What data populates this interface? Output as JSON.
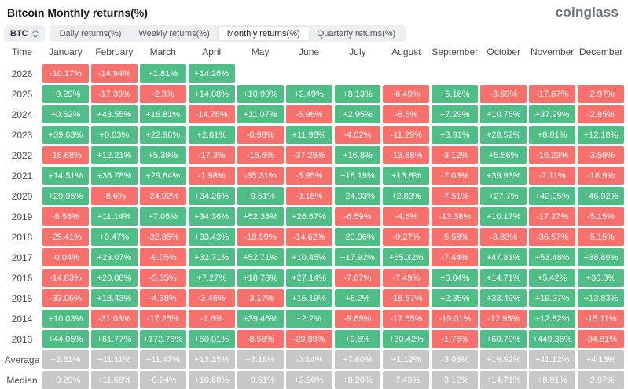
{
  "header": {
    "title": "Bitcoin Monthly returns(%)",
    "brand": "coinglass"
  },
  "controls": {
    "symbol": "BTC",
    "tabs": [
      {
        "label": "Daily returns(%)",
        "active": false
      },
      {
        "label": "Weekly returns(%)",
        "active": false
      },
      {
        "label": "Monthly returns(%)",
        "active": true
      },
      {
        "label": "Quarterly returns(%)",
        "active": false
      }
    ]
  },
  "colors": {
    "positive": "#4ebe86",
    "negative": "#f7706c",
    "neutral": "#c7c7c7"
  },
  "table": {
    "columns": [
      "Time",
      "January",
      "February",
      "March",
      "April",
      "May",
      "June",
      "July",
      "August",
      "September",
      "October",
      "November",
      "December"
    ],
    "rows": [
      {
        "label": "2026",
        "values": [
          "-10.17%",
          "-14.94%",
          "+1.81%",
          "+14.26%",
          "",
          "",
          "",
          "",
          "",
          "",
          "",
          ""
        ],
        "colors": [
          "r",
          "r",
          "g",
          "g",
          "e",
          "e",
          "e",
          "e",
          "e",
          "e",
          "e",
          "e"
        ]
      },
      {
        "label": "2025",
        "values": [
          "+9.29%",
          "-17.39%",
          "-2.3%",
          "+14.08%",
          "+10.99%",
          "+2.49%",
          "+8.13%",
          "-6.49%",
          "+5.16%",
          "-3.69%",
          "-17.67%",
          "-2.97%"
        ],
        "colors": [
          "g",
          "r",
          "r",
          "g",
          "g",
          "g",
          "g",
          "r",
          "g",
          "r",
          "r",
          "r"
        ]
      },
      {
        "label": "2024",
        "values": [
          "+0.62%",
          "+43.55%",
          "+16.81%",
          "-14.76%",
          "+11.07%",
          "-6.96%",
          "+2.95%",
          "-8.6%",
          "+7.29%",
          "+10.76%",
          "+37.29%",
          "-2.85%"
        ],
        "colors": [
          "g",
          "g",
          "g",
          "r",
          "g",
          "r",
          "g",
          "r",
          "g",
          "g",
          "g",
          "r"
        ]
      },
      {
        "label": "2023",
        "values": [
          "+39.63%",
          "+0.03%",
          "+22.96%",
          "+2.81%",
          "-6.98%",
          "+11.98%",
          "-4.02%",
          "-11.29%",
          "+3.91%",
          "+28.52%",
          "+8.81%",
          "+12.18%"
        ],
        "colors": [
          "g",
          "g",
          "g",
          "g",
          "r",
          "g",
          "r",
          "r",
          "g",
          "g",
          "g",
          "g"
        ]
      },
      {
        "label": "2022",
        "values": [
          "-16.68%",
          "+12.21%",
          "+5.39%",
          "-17.3%",
          "-15.6%",
          "-37.28%",
          "+16.8%",
          "-13.88%",
          "-3.12%",
          "+5.56%",
          "-16.23%",
          "-3.59%"
        ],
        "colors": [
          "r",
          "g",
          "g",
          "r",
          "r",
          "r",
          "g",
          "r",
          "r",
          "g",
          "r",
          "r"
        ]
      },
      {
        "label": "2021",
        "values": [
          "+14.51%",
          "+36.78%",
          "+29.84%",
          "-1.98%",
          "-35.31%",
          "-5.95%",
          "+18.19%",
          "+13.8%",
          "-7.03%",
          "+39.93%",
          "-7.11%",
          "-18.9%"
        ],
        "colors": [
          "g",
          "g",
          "g",
          "r",
          "r",
          "r",
          "g",
          "g",
          "r",
          "g",
          "r",
          "r"
        ]
      },
      {
        "label": "2020",
        "values": [
          "+29.95%",
          "-8.6%",
          "-24.92%",
          "+34.26%",
          "+9.51%",
          "-3.18%",
          "+24.03%",
          "+2.83%",
          "-7.51%",
          "+27.7%",
          "+42.95%",
          "+46.92%"
        ],
        "colors": [
          "g",
          "r",
          "r",
          "g",
          "g",
          "r",
          "g",
          "g",
          "r",
          "g",
          "g",
          "g"
        ]
      },
      {
        "label": "2019",
        "values": [
          "-8.58%",
          "+11.14%",
          "+7.05%",
          "+34.36%",
          "+52.38%",
          "+26.67%",
          "-6.59%",
          "-4.6%",
          "-13.38%",
          "+10.17%",
          "-17.27%",
          "-5.15%"
        ],
        "colors": [
          "r",
          "g",
          "g",
          "g",
          "g",
          "g",
          "r",
          "r",
          "r",
          "g",
          "r",
          "r"
        ]
      },
      {
        "label": "2018",
        "values": [
          "-25.41%",
          "+0.47%",
          "-32.85%",
          "+33.43%",
          "-18.99%",
          "-14.62%",
          "+20.96%",
          "-9.27%",
          "-5.58%",
          "-3.83%",
          "-36.57%",
          "-5.15%"
        ],
        "colors": [
          "r",
          "g",
          "r",
          "g",
          "r",
          "r",
          "g",
          "r",
          "r",
          "r",
          "r",
          "r"
        ]
      },
      {
        "label": "2017",
        "values": [
          "-0.04%",
          "+23.07%",
          "-9.05%",
          "+32.71%",
          "+52.71%",
          "+10.45%",
          "+17.92%",
          "+65.32%",
          "-7.44%",
          "+47.81%",
          "+53.48%",
          "+38.89%"
        ],
        "colors": [
          "r",
          "g",
          "r",
          "g",
          "g",
          "g",
          "g",
          "g",
          "r",
          "g",
          "g",
          "g"
        ]
      },
      {
        "label": "2016",
        "values": [
          "-14.83%",
          "+20.08%",
          "-5.35%",
          "+7.27%",
          "+18.78%",
          "+27.14%",
          "-7.67%",
          "-7.49%",
          "+6.04%",
          "+14.71%",
          "+5.42%",
          "+30.8%"
        ],
        "colors": [
          "r",
          "g",
          "r",
          "g",
          "g",
          "g",
          "r",
          "r",
          "g",
          "g",
          "g",
          "g"
        ]
      },
      {
        "label": "2015",
        "values": [
          "-33.05%",
          "+18.43%",
          "-4.38%",
          "-3.46%",
          "-3.17%",
          "+15.19%",
          "+8.2%",
          "-18.67%",
          "+2.35%",
          "+33.49%",
          "+19.27%",
          "+13.83%"
        ],
        "colors": [
          "r",
          "g",
          "r",
          "r",
          "r",
          "g",
          "g",
          "r",
          "g",
          "g",
          "g",
          "g"
        ]
      },
      {
        "label": "2014",
        "values": [
          "+10.03%",
          "-31.03%",
          "-17.25%",
          "-1.6%",
          "+39.46%",
          "+2.2%",
          "-9.69%",
          "-17.55%",
          "-19.01%",
          "-12.95%",
          "+12.82%",
          "-15.11%"
        ],
        "colors": [
          "g",
          "r",
          "r",
          "r",
          "g",
          "g",
          "r",
          "r",
          "r",
          "r",
          "g",
          "r"
        ]
      },
      {
        "label": "2013",
        "values": [
          "+44.05%",
          "+61.77%",
          "+172.76%",
          "+50.01%",
          "-8.56%",
          "-29.89%",
          "+9.6%",
          "+30.42%",
          "-1.76%",
          "+60.79%",
          "+449.35%",
          "-34.81%"
        ],
        "colors": [
          "g",
          "g",
          "g",
          "g",
          "r",
          "r",
          "g",
          "g",
          "r",
          "g",
          "g",
          "r"
        ]
      },
      {
        "label": "Average",
        "values": [
          "+2.81%",
          "+11.11%",
          "+11.47%",
          "+13.15%",
          "+8.18%",
          "-0.14%",
          "+7.60%",
          "+1.12%",
          "-3.08%",
          "+19.92%",
          "+41.12%",
          "+4.16%"
        ],
        "colors": [
          "n",
          "n",
          "n",
          "n",
          "n",
          "n",
          "n",
          "n",
          "n",
          "n",
          "n",
          "n"
        ]
      },
      {
        "label": "Median",
        "values": [
          "+0.29%",
          "+11.68%",
          "-0.24%",
          "+10.68%",
          "+9.51%",
          "+2.20%",
          "+8.20%",
          "-7.49%",
          "-3.12%",
          "+14.71%",
          "+8.81%",
          "-2.97%"
        ],
        "colors": [
          "n",
          "n",
          "n",
          "n",
          "n",
          "n",
          "n",
          "n",
          "n",
          "n",
          "n",
          "n"
        ]
      }
    ]
  }
}
